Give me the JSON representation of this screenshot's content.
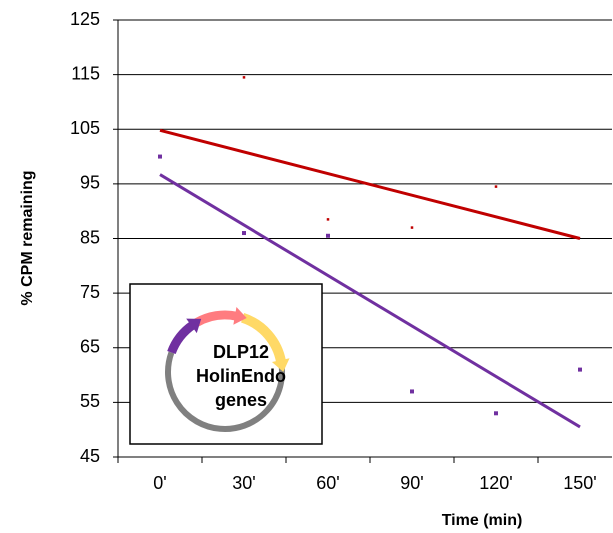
{
  "chart_data": {
    "type": "scatter",
    "x_label": "Time (min)",
    "y_label": "% CPM remaining",
    "categories": [
      "0'",
      "30'",
      "60'",
      "90'",
      "120'",
      "150'"
    ],
    "series": [
      {
        "color": "#c00000",
        "values": [
          null,
          114.5,
          88.5,
          87,
          94.5,
          null
        ]
      },
      {
        "color": "#7030a0",
        "values": [
          100,
          86,
          85.5,
          57,
          53,
          61
        ]
      }
    ],
    "trendlines": [
      {
        "color": "#c00000",
        "values": [
          104.8,
          null,
          null,
          null,
          null,
          85
        ]
      },
      {
        "color": "#7030a0",
        "values": [
          96.7,
          null,
          null,
          null,
          null,
          50.5
        ]
      }
    ],
    "ylim": [
      45,
      125
    ],
    "yticks": [
      45,
      55,
      65,
      75,
      85,
      95,
      105,
      115,
      125
    ],
    "grid": true,
    "inset_lines": [
      "DLP12",
      "HolinEndo",
      "genes"
    ]
  }
}
